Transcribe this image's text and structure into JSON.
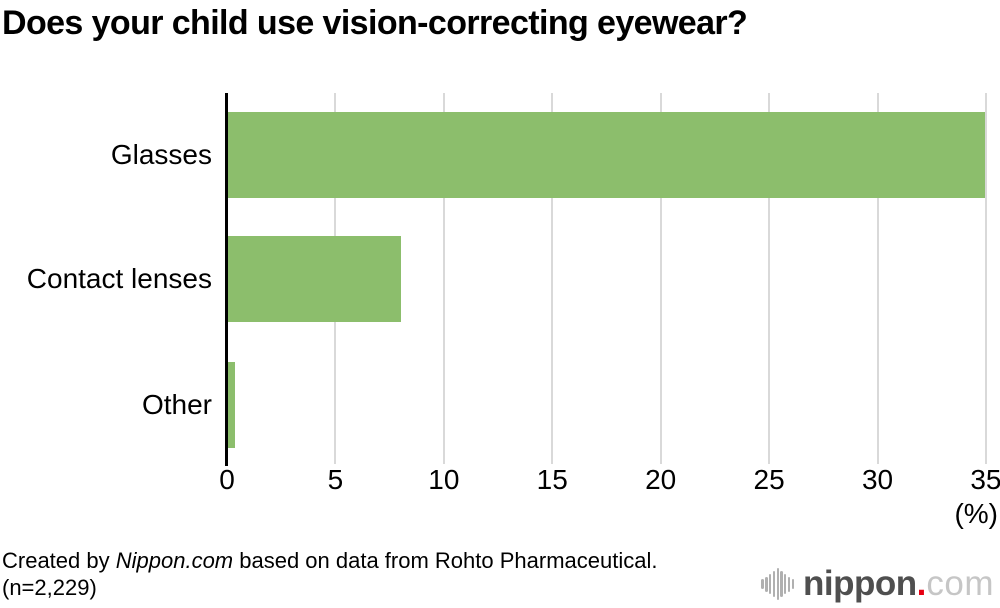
{
  "title": "Does your child use vision-correcting eyewear?",
  "chart_data": {
    "type": "bar",
    "orientation": "horizontal",
    "title": "Does your child use vision-correcting eyewear?",
    "categories": [
      "Glasses",
      "Contact lenses",
      "Other"
    ],
    "values": [
      34.9,
      8.0,
      0.3
    ],
    "xlabel": "(%)",
    "xlim": [
      0,
      35
    ],
    "xticks": [
      0,
      5,
      10,
      15,
      20,
      25,
      30,
      35
    ],
    "grid": true,
    "legend": "none",
    "bar_color": "#8cbe6c",
    "gridline_color": "#d9d9d9",
    "axis_color": "#000000"
  },
  "footer": {
    "credit_prefix": "Created by ",
    "credit_source_italic": "Nippon.com",
    "credit_suffix": " based on data from Rohto Pharmaceutical.",
    "sample_size": "(n=2,229)"
  },
  "logo": {
    "brand": "nippon",
    "separator": ".",
    "tld": "com",
    "icon": "soundwave-bars-icon",
    "brand_color": "#4f4f4f",
    "dot_color": "#e60012",
    "tld_color": "#c6c6c6",
    "icon_color": "#b0b0b0"
  }
}
